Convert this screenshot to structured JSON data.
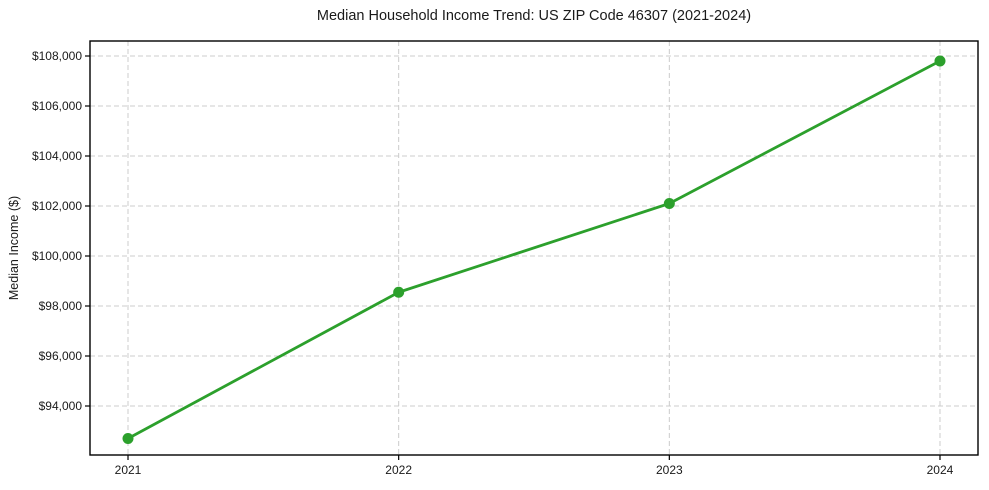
{
  "page": {
    "background": "#ffffff"
  },
  "chart_data": {
    "type": "line",
    "title": "Median Household Income Trend: US ZIP Code 46307 (2021-2024)",
    "xlabel": "",
    "ylabel": "Median Income ($)",
    "categories": [
      "2021",
      "2022",
      "2023",
      "2024"
    ],
    "series": [
      {
        "name": "Median Income ($)",
        "values": [
          92700,
          98550,
          102100,
          107800
        ]
      }
    ],
    "ylim": [
      92040,
      108600
    ],
    "yticks": [
      94000,
      96000,
      98000,
      100000,
      102000,
      104000,
      106000,
      108000
    ],
    "ytick_labels": [
      "$94,000",
      "$96,000",
      "$98,000",
      "$100,000",
      "$102,000",
      "$104,000",
      "$106,000",
      "$108,000"
    ],
    "grid": true,
    "grid_style": "dashed",
    "legend_position": "none",
    "colors": {
      "line": "#2ca02c",
      "marker": "#2ca02c",
      "grid": "#cccccc",
      "axis": "#000000",
      "text": "#1a1a1a"
    }
  }
}
